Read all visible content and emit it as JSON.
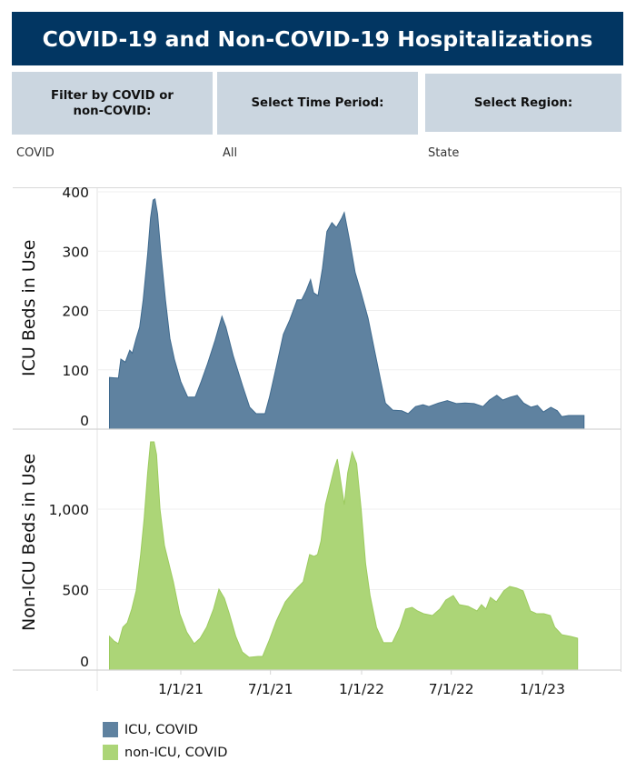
{
  "header": {
    "title": "COVID-19 and Non-COVID-19 Hospitalizations",
    "background": "#023662"
  },
  "filters": [
    {
      "label": "Filter by COVID or non-COVID:",
      "value": "COVID"
    },
    {
      "label": "Select Time Period:",
      "value": "All"
    },
    {
      "label": "Select Region:",
      "value": "State"
    }
  ],
  "legend": [
    {
      "label": "ICU, COVID",
      "color": "#5f82a0"
    },
    {
      "label": "non-ICU, COVID",
      "color": "#acd577"
    }
  ],
  "chart_data": [
    {
      "type": "area",
      "title": "ICU Beds in Use",
      "ylabel": "ICU Beds in Use",
      "xlabel": "",
      "ylim": [
        0,
        400
      ],
      "yticks": [
        0,
        100,
        200,
        300,
        400
      ],
      "ytick_labels": [
        "0",
        "100",
        "200",
        "300",
        "400"
      ],
      "x_range": [
        "2020-08",
        "2023-05"
      ],
      "grid": true,
      "color": "#5f82a0",
      "series": [
        {
          "name": "ICU, COVID",
          "points": [
            [
              "2020-08-10",
              87
            ],
            [
              "2020-08-28",
              86
            ],
            [
              "2020-09-02",
              118
            ],
            [
              "2020-09-11",
              113
            ],
            [
              "2020-09-20",
              133
            ],
            [
              "2020-09-25",
              128
            ],
            [
              "2020-10-03",
              153
            ],
            [
              "2020-10-10",
              172
            ],
            [
              "2020-10-17",
              218
            ],
            [
              "2020-10-26",
              295
            ],
            [
              "2020-11-01",
              356
            ],
            [
              "2020-11-06",
              386
            ],
            [
              "2020-11-10",
              388
            ],
            [
              "2020-11-15",
              363
            ],
            [
              "2020-11-22",
              295
            ],
            [
              "2020-12-01",
              218
            ],
            [
              "2020-12-10",
              153
            ],
            [
              "2020-12-19",
              118
            ],
            [
              "2021-01-01",
              80
            ],
            [
              "2021-01-15",
              54
            ],
            [
              "2021-01-30",
              54
            ],
            [
              "2021-02-11",
              80
            ],
            [
              "2021-02-24",
              110
            ],
            [
              "2021-03-11",
              149
            ],
            [
              "2021-03-25",
              190
            ],
            [
              "2021-04-02",
              172
            ],
            [
              "2021-04-17",
              123
            ],
            [
              "2021-05-06",
              72
            ],
            [
              "2021-05-20",
              37
            ],
            [
              "2021-06-02",
              26
            ],
            [
              "2021-06-20",
              26
            ],
            [
              "2021-06-29",
              54
            ],
            [
              "2021-07-14",
              110
            ],
            [
              "2021-07-27",
              160
            ],
            [
              "2021-08-09",
              184
            ],
            [
              "2021-08-24",
              218
            ],
            [
              "2021-09-02",
              218
            ],
            [
              "2021-09-11",
              233
            ],
            [
              "2021-09-20",
              252
            ],
            [
              "2021-09-26",
              230
            ],
            [
              "2021-10-05",
              225
            ],
            [
              "2021-10-14",
              271
            ],
            [
              "2021-10-23",
              333
            ],
            [
              "2021-11-02",
              348
            ],
            [
              "2021-11-11",
              340
            ],
            [
              "2021-11-22",
              356
            ],
            [
              "2021-11-27",
              365
            ],
            [
              "2021-12-08",
              317
            ],
            [
              "2021-12-19",
              264
            ],
            [
              "2021-12-30",
              233
            ],
            [
              "2022-01-14",
              187
            ],
            [
              "2022-01-27",
              133
            ],
            [
              "2022-02-09",
              80
            ],
            [
              "2022-02-18",
              44
            ],
            [
              "2022-03-05",
              32
            ],
            [
              "2022-03-23",
              31
            ],
            [
              "2022-04-05",
              26
            ],
            [
              "2022-04-20",
              38
            ],
            [
              "2022-05-05",
              41
            ],
            [
              "2022-05-17",
              38
            ],
            [
              "2022-06-05",
              44
            ],
            [
              "2022-06-23",
              48
            ],
            [
              "2022-07-11",
              43
            ],
            [
              "2022-07-29",
              44
            ],
            [
              "2022-08-16",
              43
            ],
            [
              "2022-09-03",
              38
            ],
            [
              "2022-09-16",
              49
            ],
            [
              "2022-10-01",
              57
            ],
            [
              "2022-10-13",
              49
            ],
            [
              "2022-10-28",
              54
            ],
            [
              "2022-11-11",
              57
            ],
            [
              "2022-11-24",
              44
            ],
            [
              "2022-12-09",
              37
            ],
            [
              "2022-12-22",
              40
            ],
            [
              "2023-01-03",
              29
            ],
            [
              "2023-01-18",
              37
            ],
            [
              "2023-01-31",
              31
            ],
            [
              "2023-02-09",
              21
            ],
            [
              "2023-02-23",
              23
            ],
            [
              "2023-03-14",
              23
            ],
            [
              "2023-03-26",
              23
            ]
          ]
        }
      ]
    },
    {
      "type": "area",
      "title": "Non-ICU Beds in Use",
      "ylabel": "Non-ICU Beds in Use",
      "xlabel": "",
      "ylim": [
        0,
        1500
      ],
      "yticks": [
        0,
        500,
        1000
      ],
      "ytick_labels": [
        "0",
        "500",
        "1,000"
      ],
      "xticks": [
        "1/1/21",
        "7/1/21",
        "1/1/22",
        "7/1/22",
        "1/1/23"
      ],
      "grid": true,
      "color": "#acd577",
      "series": [
        {
          "name": "non-ICU, COVID",
          "points": [
            [
              "2020-08-10",
              209
            ],
            [
              "2020-08-19",
              181
            ],
            [
              "2020-08-28",
              164
            ],
            [
              "2020-09-06",
              266
            ],
            [
              "2020-09-15",
              294
            ],
            [
              "2020-09-24",
              379
            ],
            [
              "2020-10-03",
              492
            ],
            [
              "2020-10-12",
              718
            ],
            [
              "2020-10-19",
              944
            ],
            [
              "2020-10-26",
              1226
            ],
            [
              "2020-11-01",
              1418
            ],
            [
              "2020-11-08",
              1418
            ],
            [
              "2020-11-13",
              1339
            ],
            [
              "2020-11-20",
              1000
            ],
            [
              "2020-11-29",
              774
            ],
            [
              "2020-12-08",
              661
            ],
            [
              "2020-12-17",
              548
            ],
            [
              "2020-12-30",
              350
            ],
            [
              "2021-01-13",
              237
            ],
            [
              "2021-01-28",
              164
            ],
            [
              "2021-02-09",
              198
            ],
            [
              "2021-02-22",
              266
            ],
            [
              "2021-03-08",
              379
            ],
            [
              "2021-03-19",
              503
            ],
            [
              "2021-03-30",
              446
            ],
            [
              "2021-04-09",
              350
            ],
            [
              "2021-04-22",
              209
            ],
            [
              "2021-05-05",
              113
            ],
            [
              "2021-05-19",
              79
            ],
            [
              "2021-06-06",
              85
            ],
            [
              "2021-06-15",
              85
            ],
            [
              "2021-06-28",
              181
            ],
            [
              "2021-07-13",
              305
            ],
            [
              "2021-07-31",
              424
            ],
            [
              "2021-08-18",
              492
            ],
            [
              "2021-09-05",
              548
            ],
            [
              "2021-09-18",
              718
            ],
            [
              "2021-09-27",
              706
            ],
            [
              "2021-10-04",
              718
            ],
            [
              "2021-10-11",
              802
            ],
            [
              "2021-10-20",
              1028
            ],
            [
              "2021-10-29",
              1141
            ],
            [
              "2021-11-07",
              1254
            ],
            [
              "2021-11-13",
              1311
            ],
            [
              "2021-11-20",
              1170
            ],
            [
              "2021-11-27",
              1028
            ],
            [
              "2021-12-04",
              1226
            ],
            [
              "2021-12-13",
              1356
            ],
            [
              "2021-12-22",
              1283
            ],
            [
              "2021-12-31",
              1000
            ],
            [
              "2022-01-09",
              661
            ],
            [
              "2022-01-18",
              463
            ],
            [
              "2022-01-31",
              266
            ],
            [
              "2022-02-14",
              170
            ],
            [
              "2022-03-04",
              170
            ],
            [
              "2022-03-19",
              266
            ],
            [
              "2022-03-31",
              379
            ],
            [
              "2022-04-13",
              390
            ],
            [
              "2022-04-24",
              367
            ],
            [
              "2022-05-06",
              350
            ],
            [
              "2022-05-24",
              339
            ],
            [
              "2022-06-08",
              379
            ],
            [
              "2022-06-20",
              435
            ],
            [
              "2022-07-05",
              463
            ],
            [
              "2022-07-17",
              407
            ],
            [
              "2022-08-04",
              396
            ],
            [
              "2022-08-22",
              367
            ],
            [
              "2022-08-31",
              407
            ],
            [
              "2022-09-09",
              379
            ],
            [
              "2022-09-18",
              452
            ],
            [
              "2022-09-30",
              424
            ],
            [
              "2022-10-15",
              492
            ],
            [
              "2022-10-27",
              520
            ],
            [
              "2022-11-10",
              509
            ],
            [
              "2022-11-23",
              492
            ],
            [
              "2022-12-08",
              367
            ],
            [
              "2022-12-20",
              350
            ],
            [
              "2023-01-04",
              350
            ],
            [
              "2023-01-17",
              339
            ],
            [
              "2023-01-26",
              266
            ],
            [
              "2023-02-09",
              220
            ],
            [
              "2023-02-27",
              209
            ],
            [
              "2023-03-13",
              198
            ]
          ]
        }
      ]
    }
  ]
}
